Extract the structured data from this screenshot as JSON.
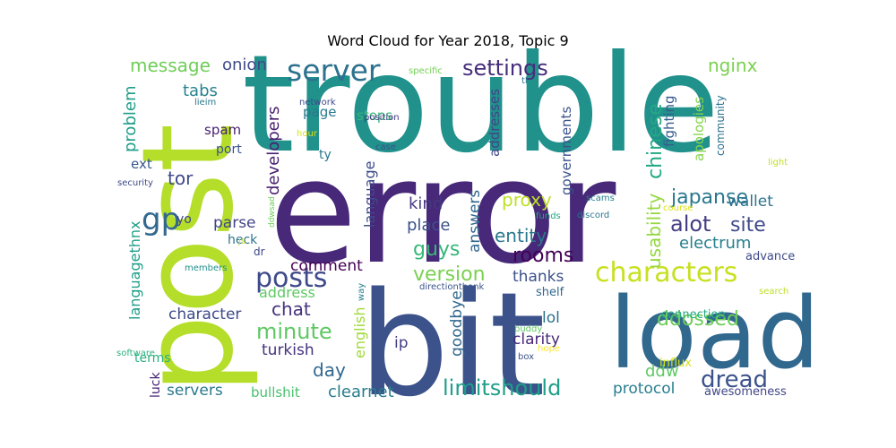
{
  "chart_data": {
    "type": "wordcloud",
    "title": "Word Cloud for Year 2018, Topic 9",
    "words": [
      {
        "text": "trouble",
        "weight": 100,
        "color": "#21918c"
      },
      {
        "text": "error",
        "weight": 100,
        "color": "#482878"
      },
      {
        "text": "post",
        "weight": 98,
        "color": "#b5de2b"
      },
      {
        "text": "bit",
        "weight": 92,
        "color": "#3b528b"
      },
      {
        "text": "load",
        "weight": 68,
        "color": "#31688e"
      },
      {
        "text": "characters",
        "weight": 30,
        "color": "#c8e020"
      },
      {
        "text": "server",
        "weight": 28,
        "color": "#2c728e"
      },
      {
        "text": "posts",
        "weight": 26,
        "color": "#3e4a89"
      },
      {
        "text": "dread",
        "weight": 24,
        "color": "#3b528b"
      },
      {
        "text": "limitshould",
        "weight": 22,
        "color": "#1f9e89"
      },
      {
        "text": "gp",
        "weight": 22,
        "color": "#31688e"
      },
      {
        "text": "settings",
        "weight": 20,
        "color": "#472d7b"
      },
      {
        "text": "alot",
        "weight": 20,
        "color": "#433e85"
      },
      {
        "text": "minute",
        "weight": 20,
        "color": "#5ec962"
      },
      {
        "text": "japanse",
        "weight": 18,
        "color": "#2a788e"
      },
      {
        "text": "rooms",
        "weight": 18,
        "color": "#440154"
      },
      {
        "text": "site",
        "weight": 18,
        "color": "#3e4989"
      },
      {
        "text": "guys",
        "weight": 18,
        "color": "#35b779"
      },
      {
        "text": "ddossed",
        "weight": 18,
        "color": "#6ece58"
      },
      {
        "text": "version",
        "weight": 18,
        "color": "#7ad151"
      },
      {
        "text": "chinese",
        "weight": 18,
        "color": "#22a884"
      },
      {
        "text": "tor",
        "weight": 18,
        "color": "#3e4989"
      },
      {
        "text": "day",
        "weight": 18,
        "color": "#31688e"
      },
      {
        "text": "chat",
        "weight": 18,
        "color": "#46327e"
      },
      {
        "text": "message",
        "weight": 16,
        "color": "#6ece58"
      },
      {
        "text": "nginx",
        "weight": 16,
        "color": "#7ad151"
      },
      {
        "text": "proxy",
        "weight": 16,
        "color": "#bddf26"
      },
      {
        "text": "entity",
        "weight": 16,
        "color": "#2a788e"
      },
      {
        "text": "usability",
        "weight": 16,
        "color": "#95d840"
      },
      {
        "text": "kind",
        "weight": 16,
        "color": "#443983"
      },
      {
        "text": "place",
        "weight": 16,
        "color": "#3b528b"
      },
      {
        "text": "ddw",
        "weight": 16,
        "color": "#5ec962"
      },
      {
        "text": "clearnet",
        "weight": 16,
        "color": "#287c8e"
      },
      {
        "text": "electrum",
        "weight": 16,
        "color": "#277f8e"
      },
      {
        "text": "onion",
        "weight": 14,
        "color": "#3e4a89"
      },
      {
        "text": "developers",
        "weight": 14,
        "color": "#481f70"
      },
      {
        "text": "problem",
        "weight": 14,
        "color": "#1f9e89"
      },
      {
        "text": "tabs",
        "weight": 14,
        "color": "#26828e"
      },
      {
        "text": "answers",
        "weight": 14,
        "color": "#31688e"
      },
      {
        "text": "wallet",
        "weight": 14,
        "color": "#2c728e"
      },
      {
        "text": "parse",
        "weight": 14,
        "color": "#414487"
      },
      {
        "text": "comment",
        "weight": 14,
        "color": "#440154"
      },
      {
        "text": "languagethnx",
        "weight": 14,
        "color": "#1f9e89"
      },
      {
        "text": "character",
        "weight": 14,
        "color": "#3e4a89"
      },
      {
        "text": "turkish",
        "weight": 14,
        "color": "#46327e"
      },
      {
        "text": "thanks",
        "weight": 14,
        "color": "#3b528b"
      },
      {
        "text": "lol",
        "weight": 14,
        "color": "#2c728e"
      },
      {
        "text": "ip",
        "weight": 14,
        "color": "#433e85"
      },
      {
        "text": "goodbye",
        "weight": 14,
        "color": "#31688e"
      },
      {
        "text": "clarity",
        "weight": 14,
        "color": "#482878"
      },
      {
        "text": "servers",
        "weight": 14,
        "color": "#2a788e"
      },
      {
        "text": "protocol",
        "weight": 14,
        "color": "#277f8e"
      },
      {
        "text": "bullshit",
        "weight": 13,
        "color": "#4ac16d"
      },
      {
        "text": "address",
        "weight": 14,
        "color": "#5ec962"
      },
      {
        "text": "english",
        "weight": 14,
        "color": "#a0da39"
      },
      {
        "text": "language",
        "weight": 14,
        "color": "#3e4a89"
      },
      {
        "text": "addresses",
        "weight": 13,
        "color": "#404688"
      },
      {
        "text": "stops",
        "weight": 13,
        "color": "#35b779"
      },
      {
        "text": "governments",
        "weight": 13,
        "color": "#3b528b"
      },
      {
        "text": "fighting",
        "weight": 13,
        "color": "#365c8d"
      },
      {
        "text": "apologies",
        "weight": 13,
        "color": "#84d44b"
      },
      {
        "text": "page",
        "weight": 13,
        "color": "#2a788e"
      },
      {
        "text": "spam",
        "weight": 13,
        "color": "#481f70"
      },
      {
        "text": "ext",
        "weight": 13,
        "color": "#38598c"
      },
      {
        "text": "heck",
        "weight": 12,
        "color": "#2c728e"
      },
      {
        "text": "terms",
        "weight": 12,
        "color": "#29af7f"
      },
      {
        "text": "luck",
        "weight": 12,
        "color": "#482475"
      },
      {
        "text": "connection",
        "weight": 12,
        "color": "#22a884"
      },
      {
        "text": "awesomeness",
        "weight": 12,
        "color": "#404688"
      },
      {
        "text": "advance",
        "weight": 12,
        "color": "#3e4a89"
      },
      {
        "text": "shelf",
        "weight": 12,
        "color": "#31688e"
      },
      {
        "text": "influx",
        "weight": 12,
        "color": "#d2e21b"
      },
      {
        "text": "community",
        "weight": 12,
        "color": "#2c728e"
      },
      {
        "text": "port",
        "weight": 12,
        "color": "#3b528b"
      },
      {
        "text": "ty",
        "weight": 12,
        "color": "#2a788e"
      },
      {
        "text": "yo",
        "weight": 12,
        "color": "#414487"
      },
      {
        "text": "dr",
        "weight": 11,
        "color": "#3e4989"
      },
      {
        "text": "network",
        "weight": 10,
        "color": "#3e4989"
      },
      {
        "text": "specific",
        "weight": 10,
        "color": "#75d054"
      },
      {
        "text": "tl",
        "weight": 10,
        "color": "#2a788e"
      },
      {
        "text": "lieim",
        "weight": 10,
        "color": "#2a788e"
      },
      {
        "text": "position",
        "weight": 10,
        "color": "#453781"
      },
      {
        "text": "hour",
        "weight": 10,
        "color": "#d8e219"
      },
      {
        "text": "case",
        "weight": 10,
        "color": "#3b528b"
      },
      {
        "text": "security",
        "weight": 10,
        "color": "#3e4989"
      },
      {
        "text": "ddwsad",
        "weight": 9,
        "color": "#6ece58"
      },
      {
        "text": "scams",
        "weight": 10,
        "color": "#277f8e"
      },
      {
        "text": "discord",
        "weight": 10,
        "color": "#2a788e"
      },
      {
        "text": "funds",
        "weight": 10,
        "color": "#22a884"
      },
      {
        "text": "course",
        "weight": 10,
        "color": "#dde318"
      },
      {
        "text": "light",
        "weight": 10,
        "color": "#c2df23"
      },
      {
        "text": "js",
        "weight": 10,
        "color": "#d2e21b"
      },
      {
        "text": "members",
        "weight": 10,
        "color": "#21918c"
      },
      {
        "text": "way",
        "weight": 10,
        "color": "#277f8e"
      },
      {
        "text": "directionthank",
        "weight": 10,
        "color": "#3b528b"
      },
      {
        "text": "search",
        "weight": 10,
        "color": "#bddf26"
      },
      {
        "text": "buddy",
        "weight": 10,
        "color": "#5ec962"
      },
      {
        "text": "hope",
        "weight": 10,
        "color": "#fde725"
      },
      {
        "text": "box",
        "weight": 10,
        "color": "#3b528b"
      },
      {
        "text": "software",
        "weight": 10,
        "color": "#2db27d"
      }
    ]
  }
}
